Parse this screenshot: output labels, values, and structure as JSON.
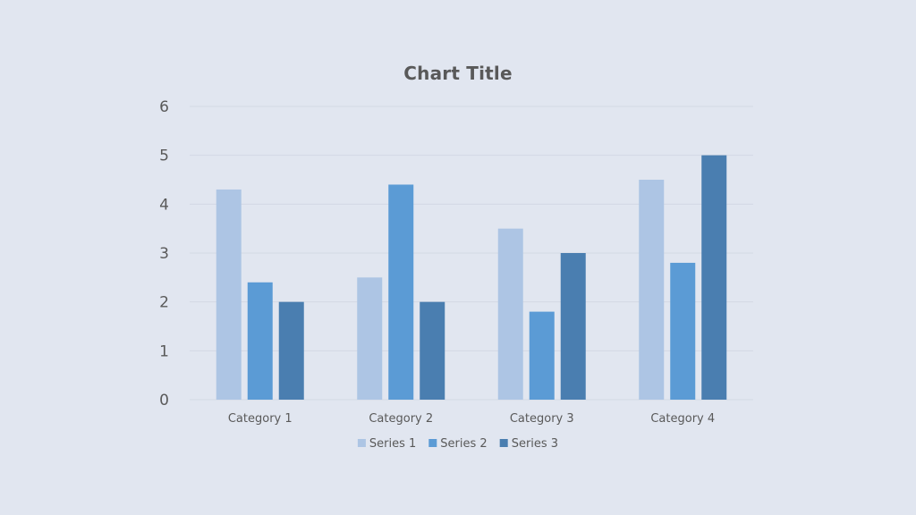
{
  "chart_data": {
    "type": "bar",
    "title": "Chart Title",
    "categories": [
      "Category 1",
      "Category 2",
      "Category 3",
      "Category 4"
    ],
    "series": [
      {
        "name": "Series 1",
        "values": [
          4.3,
          2.5,
          3.5,
          4.5
        ],
        "color": "#adc5e4"
      },
      {
        "name": "Series 2",
        "values": [
          2.4,
          4.4,
          1.8,
          2.8
        ],
        "color": "#5b9bd5"
      },
      {
        "name": "Series 3",
        "values": [
          2,
          2,
          3,
          5
        ],
        "color": "#4a7eb0"
      }
    ],
    "ylim": [
      0,
      6
    ],
    "yticks": [
      "0",
      "1",
      "2",
      "3",
      "4",
      "5",
      "6"
    ],
    "grid": true,
    "legend_position": "bottom",
    "gridline_color": "#d3d9e4",
    "text_color": "#595959",
    "background_color": "#e1e6f0"
  }
}
